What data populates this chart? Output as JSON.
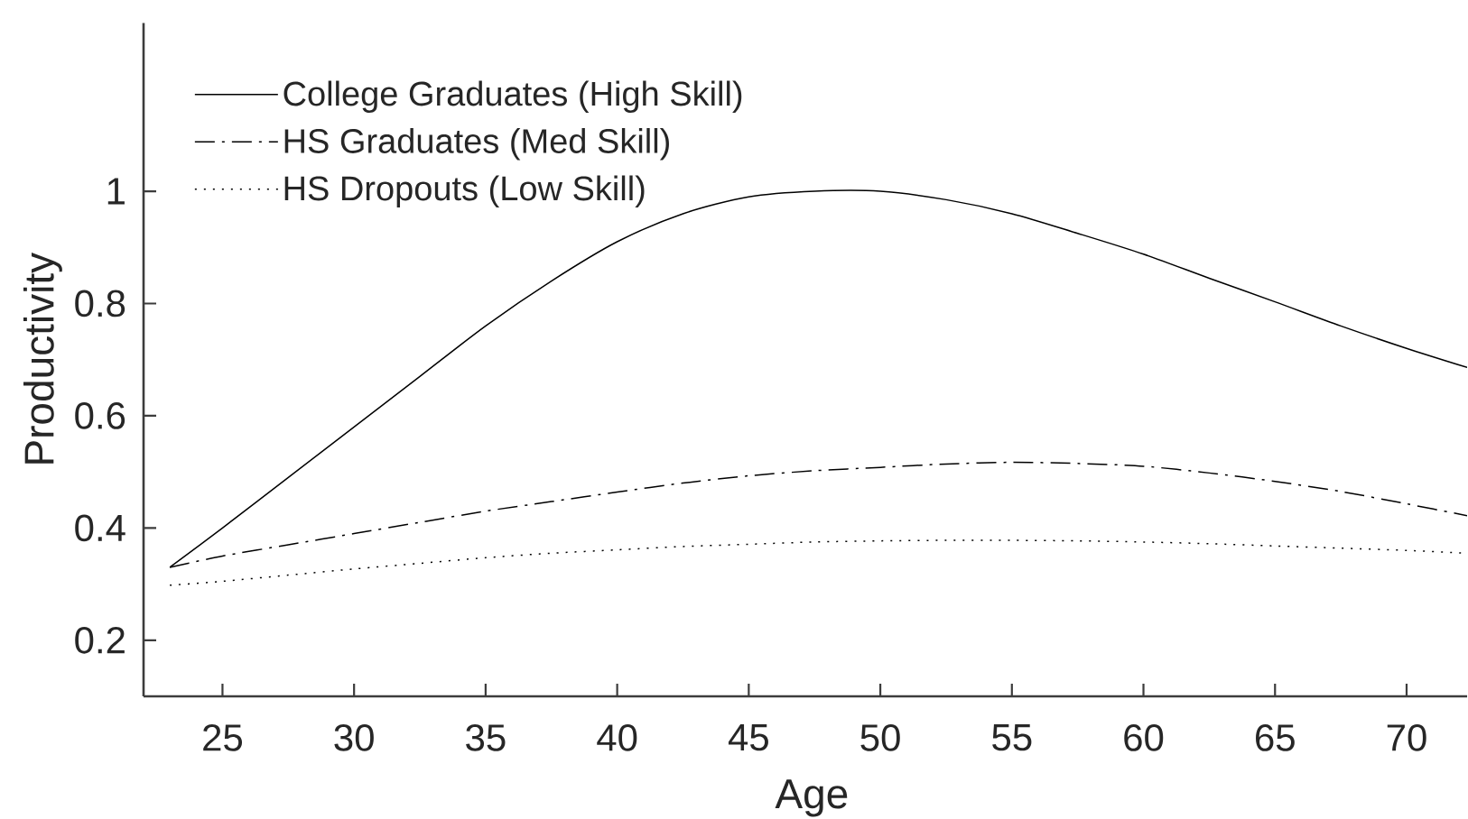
{
  "chart_data": {
    "type": "line",
    "xlabel": "Age",
    "ylabel": "Productivity",
    "x": [
      23,
      25,
      27.5,
      30,
      32.5,
      35,
      37.5,
      40,
      42.5,
      45,
      47.5,
      50,
      52.5,
      55,
      57.5,
      60,
      62.5,
      65,
      67.5,
      70,
      72.3
    ],
    "series": [
      {
        "name": "College Graduates (High Skill)",
        "color": "#000000",
        "line_style": "solid",
        "values": [
          0.33,
          0.4,
          0.49,
          0.58,
          0.67,
          0.76,
          0.84,
          0.91,
          0.96,
          0.99,
          1.0,
          1.0,
          0.985,
          0.96,
          0.925,
          0.888,
          0.845,
          0.803,
          0.76,
          0.72,
          0.686
        ]
      },
      {
        "name": "HS Graduates (Med Skill)",
        "color": "#000000",
        "line_style": "dashdot",
        "values": [
          0.33,
          0.35,
          0.37,
          0.39,
          0.41,
          0.43,
          0.447,
          0.464,
          0.48,
          0.493,
          0.502,
          0.508,
          0.514,
          0.517,
          0.515,
          0.51,
          0.498,
          0.483,
          0.465,
          0.443,
          0.422
        ]
      },
      {
        "name": "HS Dropouts (Low Skill)",
        "color": "#000000",
        "line_style": "dotted",
        "values": [
          0.298,
          0.305,
          0.316,
          0.327,
          0.337,
          0.347,
          0.355,
          0.361,
          0.367,
          0.371,
          0.375,
          0.377,
          0.378,
          0.378,
          0.377,
          0.375,
          0.372,
          0.368,
          0.364,
          0.36,
          0.355
        ]
      }
    ],
    "xlim": [
      22,
      72.3
    ],
    "ylim": [
      0.1,
      1.3
    ],
    "xticks": [
      25,
      30,
      35,
      40,
      45,
      50,
      55,
      60,
      65,
      70
    ],
    "yticks": [
      0.2,
      0.4,
      0.6,
      0.8,
      1
    ],
    "legend": "top left"
  }
}
